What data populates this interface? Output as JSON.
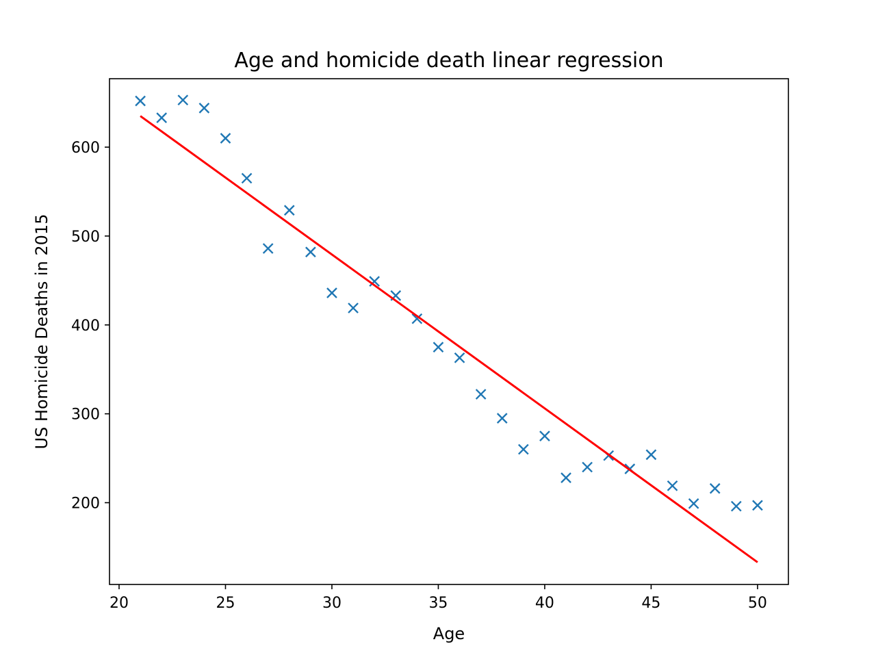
{
  "chart_data": {
    "type": "scatter",
    "title": "Age and homicide death linear regression",
    "xlabel": "Age",
    "ylabel": "US Homicide Deaths in 2015",
    "xlim": [
      19.55,
      51.45
    ],
    "ylim": [
      108,
      677
    ],
    "xticks": [
      20,
      25,
      30,
      35,
      40,
      45,
      50
    ],
    "yticks": [
      200,
      300,
      400,
      500,
      600
    ],
    "grid": false,
    "legend": "none",
    "series": [
      {
        "kind": "scatter",
        "marker": "x",
        "color": "#1f77b4",
        "x": [
          21,
          22,
          23,
          24,
          25,
          26,
          27,
          28,
          29,
          30,
          31,
          32,
          33,
          34,
          35,
          36,
          37,
          38,
          39,
          40,
          41,
          42,
          43,
          44,
          45,
          46,
          47,
          48,
          49,
          50
        ],
        "y": [
          652,
          633,
          653,
          644,
          610,
          565,
          486,
          529,
          482,
          436,
          419,
          449,
          433,
          407,
          375,
          363,
          322,
          295,
          260,
          275,
          228,
          240,
          253,
          238,
          254,
          219,
          199,
          216,
          196,
          197
        ]
      },
      {
        "kind": "line",
        "color": "#ff0000",
        "x": [
          21,
          50
        ],
        "y": [
          635,
          133
        ]
      }
    ]
  }
}
